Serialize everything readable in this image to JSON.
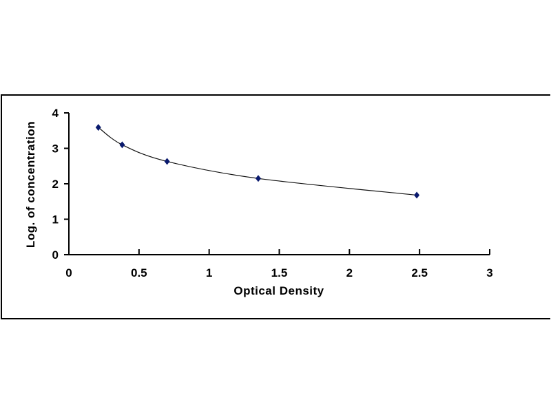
{
  "chart_data": {
    "type": "scatter",
    "title": "",
    "xlabel": "Optical Density",
    "ylabel": "Log. of concentration",
    "xlim": [
      0,
      3
    ],
    "ylim": [
      0,
      4
    ],
    "xticks": [
      "0",
      "0.5",
      "1",
      "1.5",
      "2",
      "2.5",
      "3"
    ],
    "yticks": [
      "0",
      "1",
      "2",
      "3",
      "4"
    ],
    "grid": false,
    "legend": "none",
    "marker": "diamond",
    "trendline": "smooth curve",
    "series": [
      {
        "x": [
          0.21,
          0.38,
          0.7,
          1.35,
          2.48
        ],
        "y": [
          3.59,
          3.1,
          2.63,
          2.15,
          1.68
        ],
        "color": "#0a1a6e"
      }
    ]
  }
}
